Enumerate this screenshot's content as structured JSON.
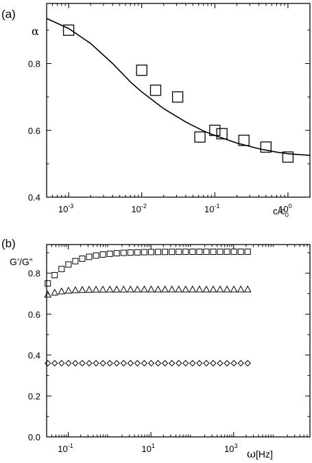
{
  "chart_data": [
    {
      "type": "scatter",
      "panel_label": "(a)",
      "ylabel": "α",
      "xlabel": {
        "main": "c/c",
        "sub": "0"
      },
      "xscale": "log",
      "xlim": [
        0.0005,
        2.0
      ],
      "ylim": [
        0.4,
        0.98
      ],
      "yticks": [
        0.4,
        0.6,
        0.8
      ],
      "xticks": [
        {
          "base": "10",
          "exp": "-3",
          "value": 0.001
        },
        {
          "base": "10",
          "exp": "-2",
          "value": 0.01
        },
        {
          "base": "10",
          "exp": "-1",
          "value": 0.1
        },
        {
          "base": "10",
          "exp": "0",
          "value": 1
        }
      ],
      "series": [
        {
          "marker": "square",
          "points": [
            {
              "x": 0.001,
              "y": 0.9
            },
            {
              "x": 0.01,
              "y": 0.78
            },
            {
              "x": 0.0155,
              "y": 0.72
            },
            {
              "x": 0.031,
              "y": 0.7
            },
            {
              "x": 0.0625,
              "y": 0.58
            },
            {
              "x": 0.1,
              "y": 0.6
            },
            {
              "x": 0.125,
              "y": 0.59
            },
            {
              "x": 0.25,
              "y": 0.57
            },
            {
              "x": 0.5,
              "y": 0.55
            },
            {
              "x": 1.0,
              "y": 0.52
            }
          ]
        }
      ],
      "fit_curve": [
        {
          "x": 0.0005,
          "y": 0.935
        },
        {
          "x": 0.001,
          "y": 0.905
        },
        {
          "x": 0.002,
          "y": 0.86
        },
        {
          "x": 0.004,
          "y": 0.8
        },
        {
          "x": 0.007,
          "y": 0.745
        },
        {
          "x": 0.01,
          "y": 0.715
        },
        {
          "x": 0.02,
          "y": 0.665
        },
        {
          "x": 0.04,
          "y": 0.625
        },
        {
          "x": 0.07,
          "y": 0.598
        },
        {
          "x": 0.1,
          "y": 0.585
        },
        {
          "x": 0.2,
          "y": 0.562
        },
        {
          "x": 0.4,
          "y": 0.545
        },
        {
          "x": 0.7,
          "y": 0.535
        },
        {
          "x": 1.0,
          "y": 0.53
        },
        {
          "x": 2.0,
          "y": 0.525
        }
      ]
    },
    {
      "type": "scatter",
      "panel_label": "(b)",
      "ylabel": "G’/G”",
      "xlabel": {
        "greek": "ω",
        "main": "[Hz]"
      },
      "xscale": "log",
      "xlim": [
        0.03,
        70000
      ],
      "ylim": [
        0.0,
        0.94
      ],
      "yticks": [
        0.0,
        0.2,
        0.4,
        0.6,
        0.8
      ],
      "xticks": [
        {
          "base": "10",
          "exp": "-1",
          "value": 0.1
        },
        {
          "base": "10",
          "exp": "1",
          "value": 10
        },
        {
          "base": "10",
          "exp": "3",
          "value": 1000
        }
      ],
      "series": [
        {
          "marker": "square",
          "x_start": 0.032,
          "count": 30,
          "step_log10": 0.1667,
          "y_start": 0.75,
          "y_plateau": 0.905,
          "tau_log10": 0.55
        },
        {
          "marker": "triangle",
          "x_start": 0.032,
          "count": 30,
          "step_log10": 0.1667,
          "y_start": 0.695,
          "y_plateau": 0.72,
          "tau_log10": 0.35
        },
        {
          "marker": "diamond",
          "x_start": 0.032,
          "count": 30,
          "step_log10": 0.1667,
          "y_start": 0.36,
          "y_plateau": 0.36,
          "tau_log10": 1.0
        }
      ]
    }
  ]
}
